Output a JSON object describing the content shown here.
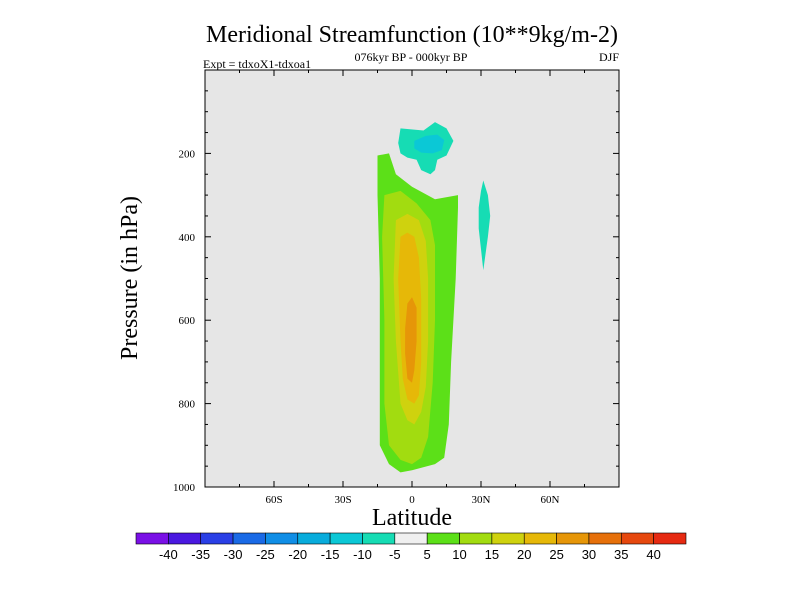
{
  "chart_data": {
    "type": "contour",
    "title": "Meridional Streamfunction (10**9kg/m-2)",
    "subtitle_left": "Expt = tdxoX1-tdxoa1",
    "subtitle_center": "076kyr BP - 000kyr BP",
    "subtitle_right": "DJF",
    "xlabel": "Latitude",
    "ylabel": "Pressure (in hPa)",
    "xlim": [
      -90,
      90
    ],
    "ylim": [
      1000,
      0
    ],
    "x_ticks": [
      {
        "value": -60,
        "label": "60S"
      },
      {
        "value": -30,
        "label": "30S"
      },
      {
        "value": 0,
        "label": "0"
      },
      {
        "value": 30,
        "label": "30N"
      },
      {
        "value": 60,
        "label": "60N"
      }
    ],
    "y_ticks": [
      {
        "value": 200,
        "label": "200"
      },
      {
        "value": 400,
        "label": "400"
      },
      {
        "value": 600,
        "label": "600"
      },
      {
        "value": 800,
        "label": "800"
      },
      {
        "value": 1000,
        "label": "1000"
      }
    ],
    "colorbar": {
      "labels": [
        "-40",
        "-35",
        "-30",
        "-25",
        "-20",
        "-15",
        "-10",
        "-5",
        "5",
        "10",
        "15",
        "20",
        "25",
        "30",
        "35",
        "40"
      ],
      "colors": [
        "#7a10e6",
        "#4a18e0",
        "#2a3fe6",
        "#1a6ae6",
        "#108ee6",
        "#08acdc",
        "#0bc8d6",
        "#16dcb4",
        "#f0f0f0",
        "#5ce018",
        "#a2dc10",
        "#cfd20e",
        "#e6b808",
        "#e69608",
        "#e6700a",
        "#e6480e",
        "#e62a12"
      ]
    },
    "contours": [
      {
        "name": "positive-cell-5",
        "color": "#5ce018",
        "points": [
          [
            -15,
            205
          ],
          [
            -10,
            200
          ],
          [
            -7,
            250
          ],
          [
            0,
            280
          ],
          [
            10,
            310
          ],
          [
            20,
            300
          ],
          [
            20,
            330
          ],
          [
            19,
            500
          ],
          [
            17,
            700
          ],
          [
            16,
            850
          ],
          [
            14,
            930
          ],
          [
            10,
            945
          ],
          [
            0,
            960
          ],
          [
            -5,
            965
          ],
          [
            -10,
            945
          ],
          [
            -14,
            900
          ],
          [
            -14,
            700
          ],
          [
            -14,
            500
          ],
          [
            -15,
            300
          ]
        ]
      },
      {
        "name": "positive-cell-10",
        "color": "#a2dc10",
        "points": [
          [
            -12,
            300
          ],
          [
            -5,
            290
          ],
          [
            2,
            320
          ],
          [
            8,
            360
          ],
          [
            10,
            420
          ],
          [
            10,
            600
          ],
          [
            9,
            750
          ],
          [
            7,
            880
          ],
          [
            4,
            930
          ],
          [
            0,
            945
          ],
          [
            -5,
            935
          ],
          [
            -10,
            900
          ],
          [
            -12,
            800
          ],
          [
            -12,
            600
          ],
          [
            -13,
            400
          ]
        ]
      },
      {
        "name": "positive-cell-15",
        "color": "#cfd20e",
        "points": [
          [
            -7,
            360
          ],
          [
            -2,
            345
          ],
          [
            3,
            360
          ],
          [
            6,
            410
          ],
          [
            7,
            500
          ],
          [
            7,
            650
          ],
          [
            6,
            760
          ],
          [
            4,
            820
          ],
          [
            1,
            850
          ],
          [
            -2,
            840
          ],
          [
            -5,
            800
          ],
          [
            -7,
            650
          ],
          [
            -8,
            500
          ]
        ]
      },
      {
        "name": "positive-cell-20",
        "color": "#e6b808",
        "points": [
          [
            -5,
            400
          ],
          [
            -2,
            390
          ],
          [
            1,
            400
          ],
          [
            3,
            450
          ],
          [
            4,
            550
          ],
          [
            4,
            700
          ],
          [
            3,
            780
          ],
          [
            1,
            800
          ],
          [
            -2,
            790
          ],
          [
            -4,
            740
          ],
          [
            -5,
            650
          ],
          [
            -6,
            500
          ]
        ]
      },
      {
        "name": "positive-cell-25",
        "color": "#e69608",
        "points": [
          [
            -2,
            560
          ],
          [
            0,
            545
          ],
          [
            2,
            570
          ],
          [
            2,
            650
          ],
          [
            1,
            720
          ],
          [
            0,
            750
          ],
          [
            -2,
            740
          ],
          [
            -3,
            680
          ],
          [
            -3,
            620
          ]
        ]
      },
      {
        "name": "negative-upper-minus5",
        "color": "#16dcb4",
        "points": [
          [
            -5,
            140
          ],
          [
            5,
            145
          ],
          [
            10,
            125
          ],
          [
            15,
            140
          ],
          [
            18,
            170
          ],
          [
            15,
            205
          ],
          [
            11,
            215
          ],
          [
            10,
            240
          ],
          [
            8,
            250
          ],
          [
            4,
            240
          ],
          [
            2,
            215
          ],
          [
            -2,
            210
          ],
          [
            -5,
            200
          ],
          [
            -6,
            175
          ]
        ]
      },
      {
        "name": "negative-upper-minus10",
        "color": "#0bc8d6",
        "points": [
          [
            1,
            170
          ],
          [
            6,
            158
          ],
          [
            11,
            155
          ],
          [
            14,
            168
          ],
          [
            13,
            192
          ],
          [
            9,
            200
          ],
          [
            4,
            198
          ],
          [
            1,
            188
          ]
        ]
      },
      {
        "name": "negative-north-minus5",
        "color": "#16dcb4",
        "points": [
          [
            31,
            265
          ],
          [
            33,
            300
          ],
          [
            34,
            350
          ],
          [
            33,
            400
          ],
          [
            32,
            440
          ],
          [
            31,
            480
          ],
          [
            30,
            430
          ],
          [
            29,
            380
          ],
          [
            29,
            330
          ],
          [
            30,
            290
          ]
        ]
      }
    ]
  }
}
